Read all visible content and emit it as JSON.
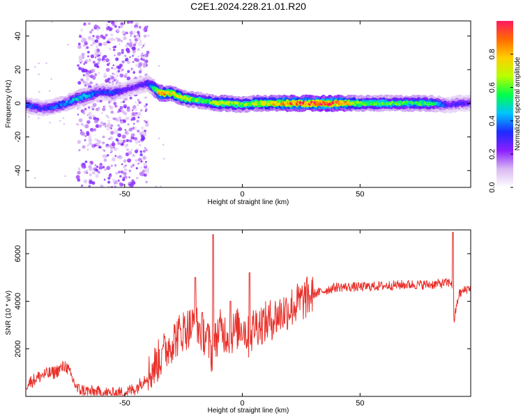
{
  "title": "C2E1.2024.228.21.01.R20",
  "colors": {
    "snr_line": "#e8302a",
    "colormap": [
      "#ffffff",
      "#d9b8f2",
      "#8a1fff",
      "#1d2bff",
      "#00c4ff",
      "#00ff4a",
      "#b8ff00",
      "#ffd000",
      "#ff6a00",
      "#ff1a60"
    ]
  },
  "chart_data": [
    {
      "type": "heatmap",
      "xlabel": "Height of straight line (km)",
      "ylabel": "Frequency (Hz)",
      "xlim": [
        -92,
        97
      ],
      "ylim": [
        -50,
        49
      ],
      "xticks": [
        -50,
        0,
        50
      ],
      "xtick_labels": [
        "-50",
        "0",
        "50"
      ],
      "yticks": [
        -40,
        -20,
        0,
        20,
        40
      ],
      "ytick_labels": [
        "-40",
        "-20",
        "0",
        "20",
        "40"
      ],
      "colorbar": {
        "label": "Normalized spectral amplitude",
        "range": [
          0.0,
          1.0
        ],
        "ticks": [
          0.0,
          0.2,
          0.4,
          0.6,
          0.8
        ],
        "tick_labels": [
          "0.0",
          "0.2",
          "0.4",
          "0.6",
          "0.8"
        ]
      },
      "ridge": {
        "x": [
          -92,
          -85,
          -80,
          -75,
          -70,
          -65,
          -60,
          -55,
          -50,
          -45,
          -40,
          -35,
          -30,
          -25,
          -20,
          -15,
          -10,
          -5,
          0,
          5,
          10,
          20,
          30,
          40,
          50,
          60,
          70,
          80,
          88,
          92,
          97
        ],
        "frequency": [
          -1,
          -3,
          -2,
          0,
          3,
          5,
          7,
          6,
          8,
          10,
          12,
          6,
          6,
          3,
          2,
          1,
          0,
          0,
          -1,
          0,
          0,
          0,
          0,
          0,
          0,
          0,
          0,
          0,
          -1,
          0,
          0
        ],
        "amplitude": [
          0.35,
          0.3,
          0.35,
          0.4,
          0.45,
          0.45,
          0.3,
          0.35,
          0.25,
          0.25,
          0.3,
          0.85,
          0.7,
          0.65,
          0.6,
          0.55,
          0.7,
          0.65,
          0.6,
          0.65,
          0.7,
          0.85,
          0.9,
          0.95,
          0.6,
          0.55,
          0.55,
          0.55,
          0.25,
          0.3,
          0.25
        ]
      },
      "noise_region_x": [
        -70,
        -40
      ]
    },
    {
      "type": "line",
      "xlabel": "Height of straight line (km)",
      "ylabel": "SNR (10 * v/v)",
      "xlim": [
        -92,
        97
      ],
      "ylim": [
        0,
        7000
      ],
      "xticks": [
        -50,
        0,
        50
      ],
      "xtick_labels": [
        "-50",
        "0",
        "50"
      ],
      "yticks": [
        2000,
        4000,
        6000
      ],
      "ytick_labels": [
        "2000",
        "4000",
        "6000"
      ],
      "series": [
        {
          "x": [
            -92,
            -85,
            -80,
            -75,
            -70,
            -65,
            -60,
            -55,
            -50,
            -45,
            -40,
            -35,
            -30,
            -25,
            -20,
            -15,
            -13,
            -10,
            -5,
            0,
            3,
            5,
            10,
            15,
            20,
            25,
            30,
            40,
            50,
            60,
            70,
            80,
            85,
            89,
            90,
            91,
            92,
            95,
            97
          ],
          "y": [
            500,
            900,
            1000,
            1300,
            300,
            200,
            150,
            100,
            150,
            350,
            900,
            1600,
            2300,
            2800,
            3000,
            2500,
            1800,
            2800,
            2600,
            3000,
            2400,
            3000,
            3100,
            3400,
            3700,
            4000,
            4300,
            4600,
            4600,
            4650,
            4700,
            4700,
            4750,
            4800,
            3200,
            3800,
            4300,
            4500,
            4600
          ],
          "spikes": [
            {
              "x": -34,
              "y": 2000
            },
            {
              "x": -20,
              "y": 5000
            },
            {
              "x": -12.5,
              "y": 6800
            },
            {
              "x": -5,
              "y": 4000
            },
            {
              "x": 3,
              "y": 5200
            },
            {
              "x": 89.5,
              "y": 6900
            }
          ]
        }
      ]
    }
  ]
}
